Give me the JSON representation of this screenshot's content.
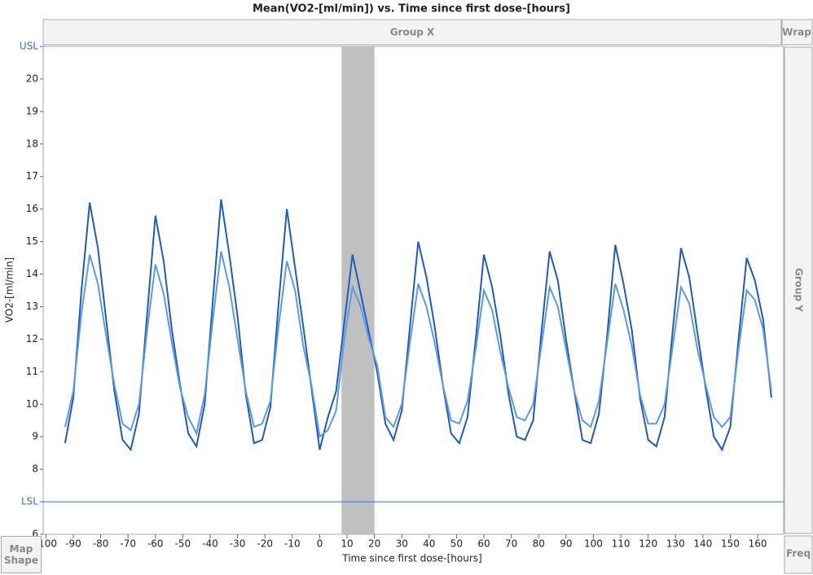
{
  "chart_data": {
    "type": "line",
    "title": "Mean(VO2-[ml/min]) vs. Time since first dose-[hours]",
    "x_label": "Time since first dose-[hours]",
    "y_label": "VO2-[ml/min]",
    "group_x": "Group X",
    "group_y": "Group Y",
    "wrap": "Wrap",
    "map_shape": "Map Shape",
    "freq": "Freq",
    "xlim": [
      -101,
      169.5
    ],
    "xticks": [
      -100,
      -90,
      -80,
      -70,
      -60,
      -50,
      -40,
      -30,
      -20,
      -10,
      0,
      10,
      20,
      30,
      40,
      50,
      60,
      70,
      80,
      90,
      100,
      110,
      120,
      130,
      140,
      150,
      160
    ],
    "ylim": [
      6,
      21
    ],
    "yticks": [
      6,
      {
        "value": 7,
        "label": "LSL"
      },
      8,
      9,
      10,
      11,
      12,
      13,
      14,
      15,
      16,
      17,
      18,
      19,
      20,
      {
        "value": 21,
        "label": "USL"
      }
    ],
    "shaded_range": [
      8,
      20
    ],
    "x": [
      -93,
      -90,
      -87,
      -84,
      -81,
      -78,
      -75,
      -72,
      -69,
      -66,
      -63,
      -60,
      -57,
      -54,
      -51,
      -48,
      -45,
      -42,
      -39,
      -36,
      -33,
      -30,
      -27,
      -24,
      -21,
      -18,
      -15,
      -12,
      -9,
      -6,
      -3,
      0,
      3,
      6,
      9,
      12,
      15,
      18,
      21,
      24,
      27,
      30,
      33,
      36,
      39,
      42,
      45,
      48,
      51,
      54,
      57,
      60,
      63,
      66,
      69,
      72,
      75,
      78,
      81,
      84,
      87,
      90,
      93,
      96,
      99,
      102,
      105,
      108,
      111,
      114,
      117,
      120,
      123,
      126,
      129,
      132,
      135,
      138,
      141,
      144,
      147,
      150,
      153,
      156,
      159,
      162,
      165
    ],
    "series": [
      {
        "color": "#1f5cb8",
        "values": [
          8.8,
          10.2,
          13.5,
          16.2,
          14.8,
          12.6,
          10.4,
          8.9,
          8.6,
          9.7,
          12.8,
          15.8,
          14.4,
          12.3,
          10.6,
          9.1,
          8.7,
          10.0,
          13.2,
          16.3,
          14.6,
          12.7,
          10.3,
          8.8,
          8.9,
          9.9,
          13.1,
          16.0,
          14.2,
          12.4,
          10.5,
          8.6,
          9.6,
          10.4,
          12.5,
          14.6,
          13.4,
          12.2,
          11.0,
          9.4,
          8.9,
          9.8,
          12.4,
          15.0,
          13.9,
          12.4,
          10.6,
          9.1,
          8.8,
          9.6,
          12.0,
          14.6,
          13.6,
          12.1,
          10.3,
          9.0,
          8.9,
          9.5,
          12.2,
          14.7,
          13.8,
          12.0,
          10.4,
          8.9,
          8.8,
          9.7,
          12.1,
          14.9,
          13.7,
          12.3,
          10.2,
          8.9,
          8.7,
          9.6,
          12.3,
          14.8,
          13.9,
          12.2,
          10.5,
          9.0,
          8.6,
          9.3,
          12.0,
          14.5,
          13.8,
          12.6,
          10.2
        ]
      },
      {
        "color": "#5a9ae6",
        "values": [
          9.3,
          10.4,
          12.8,
          14.6,
          13.7,
          12.1,
          10.6,
          9.4,
          9.2,
          10.0,
          12.3,
          14.3,
          13.4,
          11.9,
          10.5,
          9.6,
          9.1,
          10.3,
          12.6,
          14.7,
          13.6,
          12.0,
          10.4,
          9.3,
          9.4,
          10.1,
          12.4,
          14.4,
          13.5,
          11.8,
          10.6,
          9.0,
          9.2,
          9.8,
          12.0,
          13.6,
          13.0,
          12.0,
          11.2,
          9.6,
          9.3,
          10.0,
          11.9,
          13.7,
          13.0,
          11.9,
          10.6,
          9.5,
          9.4,
          10.1,
          11.7,
          13.5,
          12.9,
          11.6,
          10.5,
          9.6,
          9.5,
          10.0,
          11.8,
          13.6,
          13.0,
          11.7,
          10.4,
          9.5,
          9.3,
          10.1,
          11.9,
          13.7,
          12.9,
          11.8,
          10.3,
          9.4,
          9.4,
          10.0,
          11.8,
          13.6,
          13.1,
          11.7,
          10.6,
          9.6,
          9.3,
          9.6,
          11.7,
          13.5,
          13.2,
          12.3,
          10.4
        ]
      }
    ]
  }
}
